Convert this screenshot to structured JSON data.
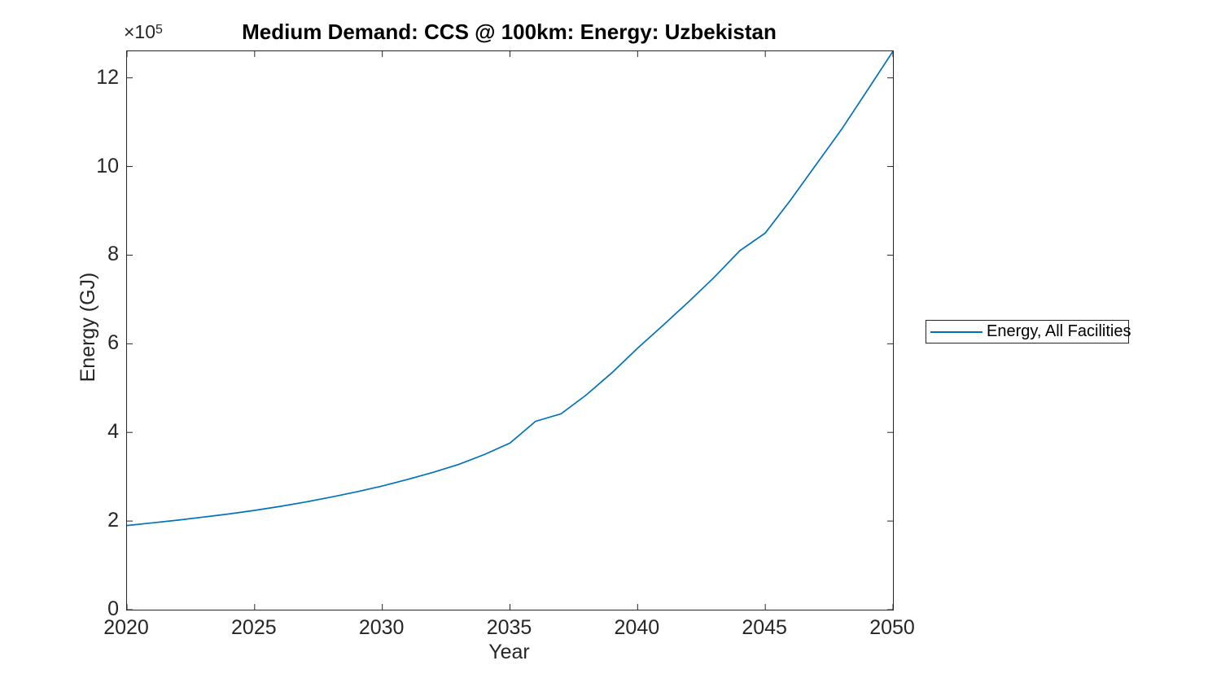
{
  "chart_data": {
    "type": "line",
    "title": "Medium Demand: CCS @ 100km: Energy: Uzbekistan",
    "xlabel": "Year",
    "ylabel": "Energy (GJ)",
    "y_axis_multiplier": "×10",
    "y_axis_multiplier_exponent": "5",
    "xlim": [
      2020,
      2050
    ],
    "ylim": [
      0,
      12.6
    ],
    "x_ticks": [
      "2020",
      "2025",
      "2030",
      "2035",
      "2040",
      "2045",
      "2050"
    ],
    "x_tick_values": [
      2020,
      2025,
      2030,
      2035,
      2040,
      2045,
      2050
    ],
    "y_ticks": [
      "0",
      "2",
      "4",
      "6",
      "8",
      "10",
      "12"
    ],
    "y_tick_values": [
      0,
      2,
      4,
      6,
      8,
      10,
      12
    ],
    "grid": false,
    "legend_position": "outside-right",
    "series": [
      {
        "name": "Energy, All Facilities",
        "color": "#0072BD",
        "x": [
          2020,
          2021,
          2022,
          2023,
          2024,
          2025,
          2026,
          2027,
          2028,
          2029,
          2030,
          2031,
          2032,
          2033,
          2034,
          2035,
          2036,
          2037,
          2038,
          2039,
          2040,
          2041,
          2042,
          2043,
          2044,
          2045,
          2046,
          2047,
          2048,
          2049,
          2050
        ],
        "values": [
          1.9,
          1.96,
          2.02,
          2.09,
          2.16,
          2.24,
          2.33,
          2.43,
          2.54,
          2.66,
          2.79,
          2.94,
          3.1,
          3.28,
          3.5,
          3.76,
          4.25,
          4.42,
          4.85,
          5.35,
          5.9,
          6.42,
          6.95,
          7.5,
          8.1,
          8.5,
          9.25,
          10.05,
          10.85,
          11.72,
          12.6
        ],
        "values_unit": "1e5 GJ"
      }
    ]
  },
  "legend": {
    "entries": [
      {
        "label": "Energy, All Facilities",
        "color": "#0072BD"
      }
    ]
  },
  "colors": {
    "line": "#0072BD",
    "axis": "#262626",
    "background": "#ffffff"
  }
}
